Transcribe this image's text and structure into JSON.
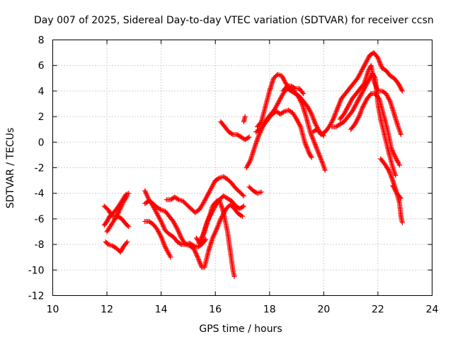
{
  "chart_data": {
    "type": "scatter",
    "title": "Day 007 of 2025, Sidereal Day-to-day VTEC variation (SDTVAR) for receiver ccsn",
    "xlabel": "GPS time / hours",
    "ylabel": "SDTVAR / TECUs",
    "xlim": [
      10,
      24
    ],
    "ylim": [
      -12,
      8
    ],
    "xticks": [
      "10",
      "12",
      "14",
      "16",
      "18",
      "20",
      "22",
      "24"
    ],
    "yticks": [
      "-12",
      "-10",
      "-8",
      "-6",
      "-4",
      "-2",
      "0",
      "2",
      "4",
      "6",
      "8"
    ],
    "grid": true,
    "marker": "plus",
    "color": "#ff0000",
    "series": [
      {
        "points": [
          [
            11.95,
            -7.8
          ],
          [
            12.05,
            -8.0
          ],
          [
            12.2,
            -8.1
          ],
          [
            12.35,
            -8.3
          ],
          [
            12.5,
            -8.6
          ],
          [
            12.6,
            -8.2
          ],
          [
            12.75,
            -7.8
          ]
        ]
      },
      {
        "points": [
          [
            11.9,
            -6.5
          ],
          [
            12.0,
            -6.2
          ],
          [
            12.1,
            -5.8
          ],
          [
            12.25,
            -5.5
          ],
          [
            12.4,
            -5.1
          ],
          [
            12.55,
            -4.6
          ],
          [
            12.7,
            -4.1
          ],
          [
            12.8,
            -4.0
          ]
        ]
      },
      {
        "points": [
          [
            11.9,
            -5.0
          ],
          [
            12.05,
            -5.3
          ],
          [
            12.2,
            -5.8
          ],
          [
            12.4,
            -5.8
          ],
          [
            12.55,
            -6.0
          ],
          [
            12.7,
            -6.4
          ],
          [
            12.8,
            -6.6
          ]
        ]
      },
      {
        "points": [
          [
            12.0,
            -7.0
          ],
          [
            12.15,
            -6.5
          ],
          [
            12.3,
            -6.0
          ],
          [
            12.45,
            -5.4
          ],
          [
            12.6,
            -4.7
          ],
          [
            12.75,
            -4.2
          ]
        ]
      },
      {
        "points": [
          [
            13.4,
            -3.8
          ],
          [
            13.55,
            -4.5
          ],
          [
            13.7,
            -5.0
          ],
          [
            13.85,
            -5.6
          ],
          [
            14.0,
            -6.2
          ],
          [
            14.15,
            -6.9
          ],
          [
            14.3,
            -7.2
          ],
          [
            14.45,
            -7.4
          ],
          [
            14.6,
            -7.8
          ],
          [
            14.75,
            -8.0
          ],
          [
            14.9,
            -8.0
          ],
          [
            15.05,
            -7.9
          ],
          [
            15.2,
            -8.1
          ],
          [
            15.35,
            -8.2
          ],
          [
            15.5,
            -8.0
          ],
          [
            15.65,
            -7.6
          ]
        ]
      },
      {
        "points": [
          [
            13.4,
            -4.8
          ],
          [
            13.55,
            -4.6
          ],
          [
            13.7,
            -4.8
          ],
          [
            13.85,
            -5.1
          ],
          [
            14.0,
            -5.3
          ],
          [
            14.15,
            -5.4
          ],
          [
            14.3,
            -5.8
          ],
          [
            14.45,
            -6.2
          ],
          [
            14.6,
            -6.8
          ],
          [
            14.75,
            -7.5
          ],
          [
            14.9,
            -8.0
          ],
          [
            15.05,
            -8.1
          ],
          [
            15.2,
            -8.3
          ],
          [
            15.35,
            -9.0
          ],
          [
            15.5,
            -9.8
          ],
          [
            15.6,
            -9.8
          ],
          [
            15.75,
            -8.5
          ],
          [
            15.9,
            -7.5
          ],
          [
            16.05,
            -6.8
          ],
          [
            16.2,
            -6.0
          ],
          [
            16.4,
            -5.2
          ],
          [
            16.55,
            -4.9
          ],
          [
            16.7,
            -5.2
          ],
          [
            16.85,
            -5.6
          ],
          [
            17.0,
            -5.8
          ]
        ]
      },
      {
        "points": [
          [
            13.4,
            -6.2
          ],
          [
            13.55,
            -6.2
          ],
          [
            13.7,
            -6.4
          ],
          [
            13.85,
            -6.8
          ],
          [
            14.0,
            -7.4
          ],
          [
            14.15,
            -8.2
          ],
          [
            14.3,
            -8.8
          ],
          [
            14.35,
            -9.0
          ]
        ]
      },
      {
        "points": [
          [
            14.2,
            -4.5
          ],
          [
            14.35,
            -4.5
          ],
          [
            14.5,
            -4.3
          ],
          [
            14.65,
            -4.5
          ],
          [
            14.8,
            -4.6
          ],
          [
            14.95,
            -4.9
          ],
          [
            15.1,
            -5.2
          ],
          [
            15.25,
            -5.5
          ],
          [
            15.4,
            -5.3
          ],
          [
            15.55,
            -4.8
          ],
          [
            15.7,
            -4.2
          ],
          [
            15.85,
            -3.6
          ],
          [
            16.0,
            -3.0
          ],
          [
            16.15,
            -2.8
          ],
          [
            16.3,
            -2.7
          ],
          [
            16.45,
            -2.9
          ],
          [
            16.6,
            -3.2
          ],
          [
            16.75,
            -3.6
          ],
          [
            16.9,
            -3.9
          ],
          [
            17.05,
            -4.2
          ]
        ]
      },
      {
        "points": [
          [
            15.3,
            -7.5
          ],
          [
            15.45,
            -8.0
          ],
          [
            15.6,
            -7.0
          ],
          [
            15.75,
            -6.0
          ],
          [
            15.9,
            -5.0
          ],
          [
            16.05,
            -4.6
          ],
          [
            16.15,
            -4.5
          ],
          [
            16.3,
            -5.5
          ],
          [
            16.45,
            -7.0
          ],
          [
            16.55,
            -8.5
          ],
          [
            16.65,
            -10.0
          ],
          [
            16.7,
            -10.5
          ]
        ]
      },
      {
        "points": [
          [
            15.4,
            -7.9
          ],
          [
            15.55,
            -7.2
          ],
          [
            15.7,
            -6.2
          ],
          [
            15.85,
            -5.6
          ],
          [
            16.0,
            -5.0
          ],
          [
            16.15,
            -4.5
          ],
          [
            16.3,
            -4.2
          ],
          [
            16.45,
            -4.4
          ],
          [
            16.6,
            -4.6
          ],
          [
            16.75,
            -5.0
          ],
          [
            16.9,
            -5.2
          ],
          [
            17.05,
            -5.0
          ]
        ]
      },
      {
        "points": [
          [
            16.2,
            1.6
          ],
          [
            16.35,
            1.2
          ],
          [
            16.5,
            0.8
          ],
          [
            16.65,
            0.6
          ],
          [
            16.8,
            0.6
          ],
          [
            16.95,
            0.4
          ],
          [
            17.1,
            0.2
          ],
          [
            17.25,
            0.4
          ]
        ]
      },
      {
        "points": [
          [
            17.25,
            -3.5
          ],
          [
            17.4,
            -3.8
          ],
          [
            17.55,
            -4.0
          ],
          [
            17.7,
            -3.9
          ]
        ]
      },
      {
        "points": [
          [
            17.05,
            1.6
          ],
          [
            17.1,
            2.0
          ]
        ]
      },
      {
        "points": [
          [
            17.15,
            -2.0
          ],
          [
            17.3,
            -1.4
          ],
          [
            17.45,
            -0.4
          ],
          [
            17.6,
            0.5
          ],
          [
            17.75,
            1.2
          ],
          [
            17.9,
            1.8
          ],
          [
            18.05,
            2.2
          ],
          [
            18.2,
            2.6
          ],
          [
            18.35,
            3.2
          ],
          [
            18.5,
            3.8
          ],
          [
            18.65,
            4.2
          ],
          [
            18.8,
            4.0
          ],
          [
            18.95,
            3.8
          ],
          [
            19.1,
            3.6
          ],
          [
            19.25,
            3.2
          ],
          [
            19.4,
            2.8
          ],
          [
            19.55,
            2.2
          ],
          [
            19.7,
            1.4
          ],
          [
            19.85,
            0.8
          ],
          [
            20.0,
            0.5
          ]
        ]
      },
      {
        "points": [
          [
            17.55,
            1.2
          ],
          [
            17.7,
            1.6
          ],
          [
            17.85,
            2.8
          ],
          [
            18.0,
            4.0
          ],
          [
            18.15,
            5.0
          ],
          [
            18.3,
            5.3
          ],
          [
            18.45,
            5.2
          ],
          [
            18.6,
            4.6
          ],
          [
            18.75,
            4.2
          ],
          [
            18.9,
            4.0
          ],
          [
            19.05,
            3.6
          ],
          [
            19.2,
            3.0
          ],
          [
            19.35,
            2.0
          ],
          [
            19.5,
            0.8
          ],
          [
            19.65,
            0.0
          ],
          [
            19.8,
            -0.8
          ],
          [
            19.95,
            -1.6
          ],
          [
            20.05,
            -2.2
          ]
        ]
      },
      {
        "points": [
          [
            17.5,
            0.8
          ],
          [
            17.65,
            1.0
          ],
          [
            17.8,
            1.4
          ],
          [
            17.95,
            1.8
          ],
          [
            18.1,
            2.2
          ],
          [
            18.25,
            2.4
          ],
          [
            18.4,
            2.2
          ],
          [
            18.55,
            2.4
          ],
          [
            18.7,
            2.5
          ],
          [
            18.85,
            2.3
          ],
          [
            19.0,
            1.8
          ],
          [
            19.15,
            1.2
          ],
          [
            19.3,
            0.0
          ],
          [
            19.45,
            -0.8
          ],
          [
            19.55,
            -1.2
          ]
        ]
      },
      {
        "points": [
          [
            18.5,
            4.0
          ],
          [
            18.65,
            4.4
          ],
          [
            18.8,
            4.4
          ],
          [
            18.95,
            4.2
          ],
          [
            19.1,
            4.2
          ],
          [
            19.25,
            3.8
          ]
        ]
      },
      {
        "points": [
          [
            19.6,
            0.8
          ],
          [
            19.75,
            1.0
          ],
          [
            19.9,
            0.6
          ],
          [
            20.05,
            0.8
          ],
          [
            20.2,
            1.2
          ],
          [
            20.35,
            1.8
          ],
          [
            20.5,
            2.6
          ],
          [
            20.65,
            3.4
          ],
          [
            20.8,
            3.8
          ],
          [
            20.95,
            4.2
          ],
          [
            21.1,
            4.6
          ],
          [
            21.25,
            5.0
          ],
          [
            21.4,
            5.6
          ],
          [
            21.55,
            6.2
          ],
          [
            21.7,
            6.8
          ],
          [
            21.85,
            7.0
          ],
          [
            22.0,
            6.6
          ],
          [
            22.15,
            5.8
          ],
          [
            22.3,
            5.6
          ],
          [
            22.45,
            5.2
          ],
          [
            22.6,
            5.0
          ],
          [
            22.75,
            4.6
          ],
          [
            22.9,
            4.0
          ]
        ]
      },
      {
        "points": [
          [
            20.3,
            1.2
          ],
          [
            20.45,
            1.2
          ],
          [
            20.6,
            1.4
          ],
          [
            20.75,
            1.6
          ],
          [
            20.9,
            2.0
          ],
          [
            21.05,
            2.4
          ],
          [
            21.2,
            3.0
          ],
          [
            21.35,
            3.6
          ],
          [
            21.5,
            4.2
          ],
          [
            21.65,
            4.8
          ],
          [
            21.8,
            5.4
          ],
          [
            21.9,
            5.0
          ],
          [
            22.0,
            3.0
          ],
          [
            22.1,
            1.8
          ],
          [
            22.25,
            0.5
          ],
          [
            22.4,
            -0.8
          ],
          [
            22.55,
            -2.0
          ],
          [
            22.65,
            -2.6
          ]
        ]
      },
      {
        "points": [
          [
            20.6,
            1.8
          ],
          [
            20.75,
            2.2
          ],
          [
            20.9,
            2.8
          ],
          [
            21.05,
            3.4
          ],
          [
            21.2,
            3.8
          ],
          [
            21.35,
            4.2
          ],
          [
            21.5,
            4.6
          ],
          [
            21.65,
            5.6
          ],
          [
            21.75,
            6.0
          ],
          [
            21.85,
            4.8
          ],
          [
            22.0,
            4.0
          ],
          [
            22.15,
            4.0
          ],
          [
            22.3,
            3.8
          ],
          [
            22.45,
            3.2
          ],
          [
            22.6,
            2.2
          ],
          [
            22.75,
            1.2
          ],
          [
            22.85,
            0.6
          ]
        ]
      },
      {
        "points": [
          [
            21.0,
            1.0
          ],
          [
            21.15,
            1.4
          ],
          [
            21.3,
            2.0
          ],
          [
            21.45,
            2.8
          ],
          [
            21.6,
            3.4
          ],
          [
            21.75,
            3.8
          ],
          [
            21.9,
            3.8
          ],
          [
            22.05,
            3.4
          ],
          [
            22.2,
            2.2
          ],
          [
            22.35,
            1.0
          ],
          [
            22.5,
            -0.5
          ],
          [
            22.65,
            -1.2
          ],
          [
            22.75,
            -1.6
          ],
          [
            22.8,
            -1.8
          ]
        ]
      },
      {
        "points": [
          [
            22.1,
            -1.3
          ],
          [
            22.25,
            -1.7
          ],
          [
            22.4,
            -2.2
          ],
          [
            22.55,
            -3.0
          ],
          [
            22.7,
            -4.0
          ],
          [
            22.8,
            -4.8
          ],
          [
            22.85,
            -5.8
          ],
          [
            22.9,
            -6.3
          ]
        ]
      },
      {
        "points": [
          [
            22.55,
            -3.4
          ],
          [
            22.7,
            -4.0
          ],
          [
            22.85,
            -4.4
          ]
        ]
      }
    ]
  }
}
